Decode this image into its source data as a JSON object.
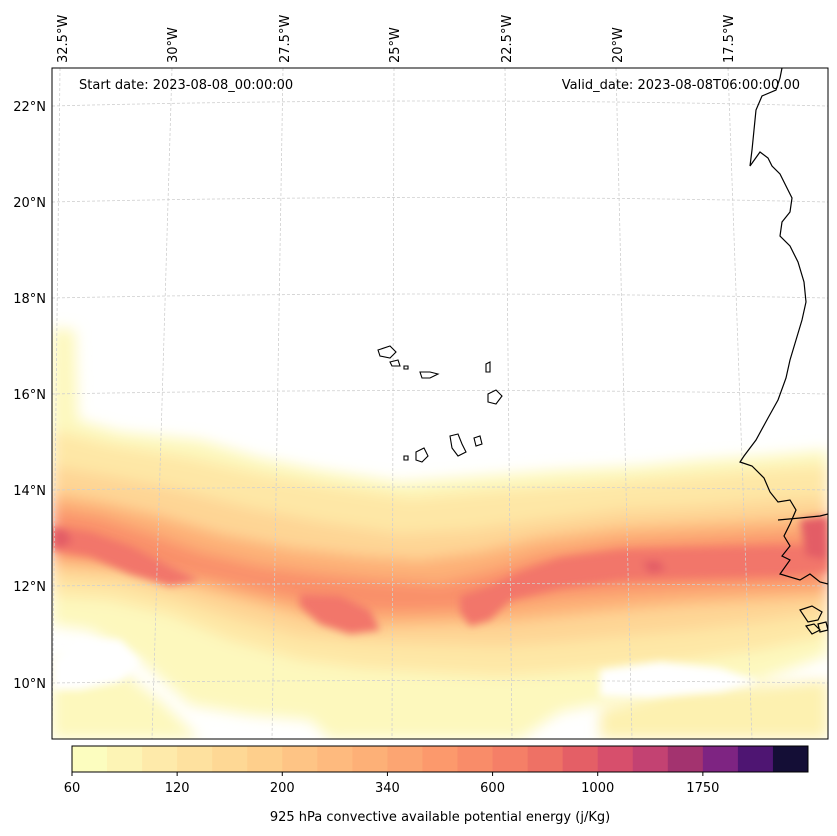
{
  "header": {
    "start_date": "Start date: 2023-08-08_00:00:00",
    "valid_date": "Valid_date: 2023-08-08T06:00:00.00"
  },
  "map": {
    "longitude_labels": [
      "32.5°W",
      "30°W",
      "27.5°W",
      "25°W",
      "22.5°W",
      "20°W",
      "17.5°W"
    ],
    "latitude_labels": [
      "22°N",
      "20°N",
      "18°N",
      "16°N",
      "14°N",
      "12°N",
      "10°N"
    ],
    "gridlines": true,
    "coastline_color": "#000000",
    "gridline_color": "#c8c8c8"
  },
  "colorbar": {
    "label": "925 hPa convective available potential energy (j/Kg)",
    "tick_labels": [
      "60",
      "120",
      "200",
      "340",
      "600",
      "1000",
      "1750"
    ],
    "levels": [
      "60",
      "80",
      "100",
      "120",
      "140",
      "170",
      "200",
      "240",
      "290",
      "340",
      "410",
      "490",
      "600",
      "730",
      "880",
      "1000",
      "1200",
      "1450",
      "1750",
      "2100"
    ],
    "colors": [
      "#fcfdbf",
      "#fdf4b5",
      "#feeaaa",
      "#fee19f",
      "#fed895",
      "#fecf8c",
      "#fec485",
      "#feba7e",
      "#fdb077",
      "#fca572",
      "#fc996c",
      "#f98c69",
      "#f57f67",
      "#ee7165",
      "#e45f66",
      "#d74f6c",
      "#c34272",
      "#a3336f",
      "#7e2482",
      "#4e1572",
      "#140e36"
    ]
  }
}
